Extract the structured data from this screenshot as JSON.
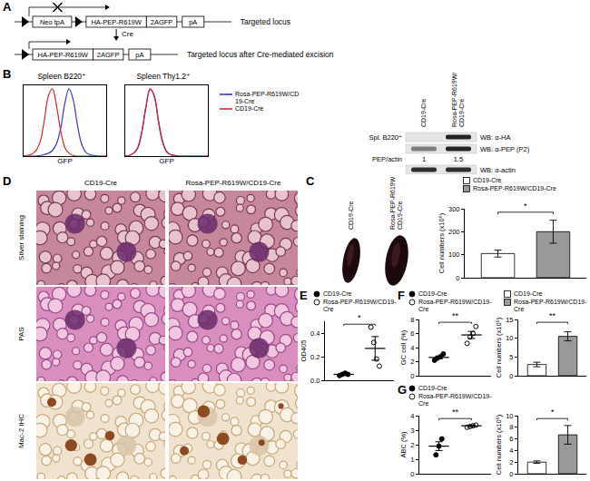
{
  "panel_labels": [
    "A",
    "B",
    "C",
    "D",
    "E",
    "F",
    "G"
  ],
  "diagram": {
    "top": {
      "boxes": [
        "Neo tpA",
        "HA-PEP-R619W",
        "2AGFP",
        "pA"
      ],
      "label": "Targeted locus"
    },
    "arrow": "Cre",
    "bottom": {
      "boxes": [
        "HA-PEP-R619W",
        "2AGFP",
        "pA"
      ],
      "label": "Targeted locus after Cre-mediated excision"
    }
  },
  "chart_data": [
    {
      "type": "line",
      "title": "Spleen B220⁺",
      "x_label": "GFP",
      "x": [
        0,
        1,
        2,
        3,
        4,
        5,
        6,
        7,
        8,
        9,
        10,
        11,
        12,
        13,
        14,
        15,
        16,
        17,
        18,
        19,
        20
      ],
      "xlim": [
        0,
        20
      ],
      "ylim": [
        0,
        100
      ],
      "tick_labels": false,
      "legend": "right",
      "series": [
        {
          "name": "Rosa-PEP-R619W/CD19-Cre",
          "color": "#3a3acc",
          "values": [
            0,
            0,
            0,
            0,
            1,
            2,
            4,
            8,
            18,
            40,
            75,
            95,
            80,
            45,
            18,
            6,
            2,
            1,
            0,
            0,
            0
          ]
        },
        {
          "name": "CD19-Cre",
          "color": "#d62728",
          "values": [
            0,
            1,
            3,
            8,
            20,
            50,
            85,
            95,
            70,
            35,
            12,
            4,
            1,
            0,
            0,
            0,
            0,
            0,
            0,
            0,
            0
          ]
        }
      ]
    },
    {
      "type": "line",
      "title": "Spleen Thy1.2⁺",
      "x_label": "GFP",
      "x": [
        0,
        1,
        2,
        3,
        4,
        5,
        6,
        7,
        8,
        9,
        10,
        11,
        12,
        13,
        14,
        15,
        16,
        17,
        18,
        19,
        20
      ],
      "xlim": [
        0,
        20
      ],
      "ylim": [
        0,
        100
      ],
      "tick_labels": false,
      "series": [
        {
          "name": "Rosa-PEP-R619W/CD19-Cre",
          "color": "#3a3acc",
          "values": [
            0,
            1,
            4,
            11,
            33,
            68,
            94,
            86,
            52,
            22,
            7,
            2,
            1,
            0,
            0,
            0,
            0,
            0,
            0,
            0,
            0
          ]
        },
        {
          "name": "CD19-Cre",
          "color": "#d62728",
          "values": [
            0,
            1,
            4,
            12,
            35,
            70,
            95,
            85,
            50,
            20,
            6,
            2,
            1,
            0,
            0,
            0,
            0,
            0,
            0,
            0,
            0
          ]
        }
      ]
    },
    {
      "type": "bar",
      "ylabel": "Cell numbers (x10⁶)",
      "ylim": [
        0,
        300
      ],
      "yticks": [
        0,
        100,
        200,
        300
      ],
      "tick_labels": "y",
      "legend": "top",
      "annotations": [
        "*"
      ],
      "series": [
        {
          "name": "CD19-Cre",
          "color": "#ffffff",
          "values": [
            105
          ],
          "errors": [
            15
          ]
        },
        {
          "name": "Rosa-PEP-R619W/CD19-Cre",
          "color": "#999999",
          "values": [
            200
          ],
          "errors": [
            50
          ]
        }
      ]
    },
    {
      "type": "scatter",
      "ylabel": "OD405",
      "ylim": [
        0,
        0.5
      ],
      "yticks": [
        {
          "value": 0,
          "label": "0.0"
        },
        0.2,
        0.4
      ],
      "tick_labels": "y",
      "legend": "top",
      "annotations": [
        "*"
      ],
      "series": [
        {
          "name": "CD19-Cre",
          "marker": "filled",
          "values": [
            0.04,
            0.05,
            0.06,
            0.05
          ],
          "mean": 0.05,
          "sem": 0.01
        },
        {
          "name": "Rosa-PEP-R619W/CD19-Cre",
          "marker": "open",
          "values": [
            0.45,
            0.32,
            0.18,
            0.12
          ],
          "mean": 0.27,
          "sem": 0.1
        }
      ]
    },
    {
      "type": "scatter",
      "ylabel": "GC cell (%)",
      "ylim": [
        0,
        8
      ],
      "yticks": [
        0,
        2,
        4,
        6,
        8
      ],
      "tick_labels": "y",
      "legend": "top",
      "annotations": [
        "**"
      ],
      "series": [
        {
          "name": "CD19-Cre",
          "marker": "filled",
          "values": [
            2.2,
            2.5,
            2.7,
            3.1
          ],
          "mean": 2.6,
          "sem": 0.2
        },
        {
          "name": "Rosa-PEP-R619W/CD19-Cre",
          "marker": "open",
          "values": [
            4.6,
            5.5,
            6.0,
            7.0
          ],
          "mean": 5.8,
          "sem": 0.5
        }
      ]
    },
    {
      "type": "bar",
      "ylabel": "Cell numbers (x10⁶)",
      "ylim": [
        0,
        15
      ],
      "yticks": [
        0,
        5,
        10,
        15
      ],
      "tick_labels": "y",
      "legend": "top",
      "annotations": [
        "**"
      ],
      "series": [
        {
          "name": "CD19-Cre",
          "color": "#ffffff",
          "values": [
            3.0
          ],
          "errors": [
            0.6
          ]
        },
        {
          "name": "Rosa-PEP-R619W/CD19-Cre",
          "color": "#999999",
          "values": [
            10.5
          ],
          "errors": [
            1.2
          ]
        }
      ]
    },
    {
      "type": "scatter",
      "ylabel": "ABC (%)",
      "ylim": [
        0,
        4
      ],
      "yticks": [
        0,
        1,
        2,
        3,
        4
      ],
      "tick_labels": "y",
      "legend": "top",
      "annotations": [
        "**"
      ],
      "series": [
        {
          "name": "CD19-Cre",
          "marker": "filled",
          "values": [
            1.3,
            1.9,
            2.4
          ],
          "mean": 1.9,
          "sem": 0.3
        },
        {
          "name": "Rosa-PEP-R619W/CD19-Cre",
          "marker": "open",
          "values": [
            3.2,
            3.25,
            3.3,
            3.35
          ],
          "mean": 3.3,
          "sem": 0.05
        }
      ]
    },
    {
      "type": "bar",
      "ylabel": "Cell numbers (x10⁶)",
      "ylim": [
        0,
        10
      ],
      "yticks": [
        0,
        2,
        4,
        6,
        8,
        10
      ],
      "tick_labels": "y",
      "annotations": [
        "*"
      ],
      "series": [
        {
          "name": "CD19-Cre",
          "color": "#ffffff",
          "values": [
            2.0
          ],
          "errors": [
            0.2
          ]
        },
        {
          "name": "Rosa-PEP-R619W/CD19-Cre",
          "color": "#999999",
          "values": [
            6.7
          ],
          "errors": [
            1.6
          ]
        }
      ]
    }
  ],
  "blot": {
    "sample": "Spl. B220⁺",
    "lanes": [
      "CD19-Cre",
      "Rosa-PEP-R619W/CD19-Cre"
    ],
    "rows": [
      "WB: α-HA",
      "WB: α-PEP (P2)",
      "WB: α-actin"
    ],
    "ratio": {
      "label": "PEP/actin",
      "values": [
        1,
        1.5
      ]
    }
  },
  "spleen_photo": {
    "lanes": [
      "CD19-Cre",
      "Rosa-PEP-R619W/CD19-Cre"
    ]
  },
  "histology": {
    "columns": [
      "CD19-Cre",
      "Rosa-PEP-R619W/CD19-Cre"
    ],
    "rows": [
      "Silver staining",
      "PAS",
      "Mac-2 IHC"
    ]
  }
}
